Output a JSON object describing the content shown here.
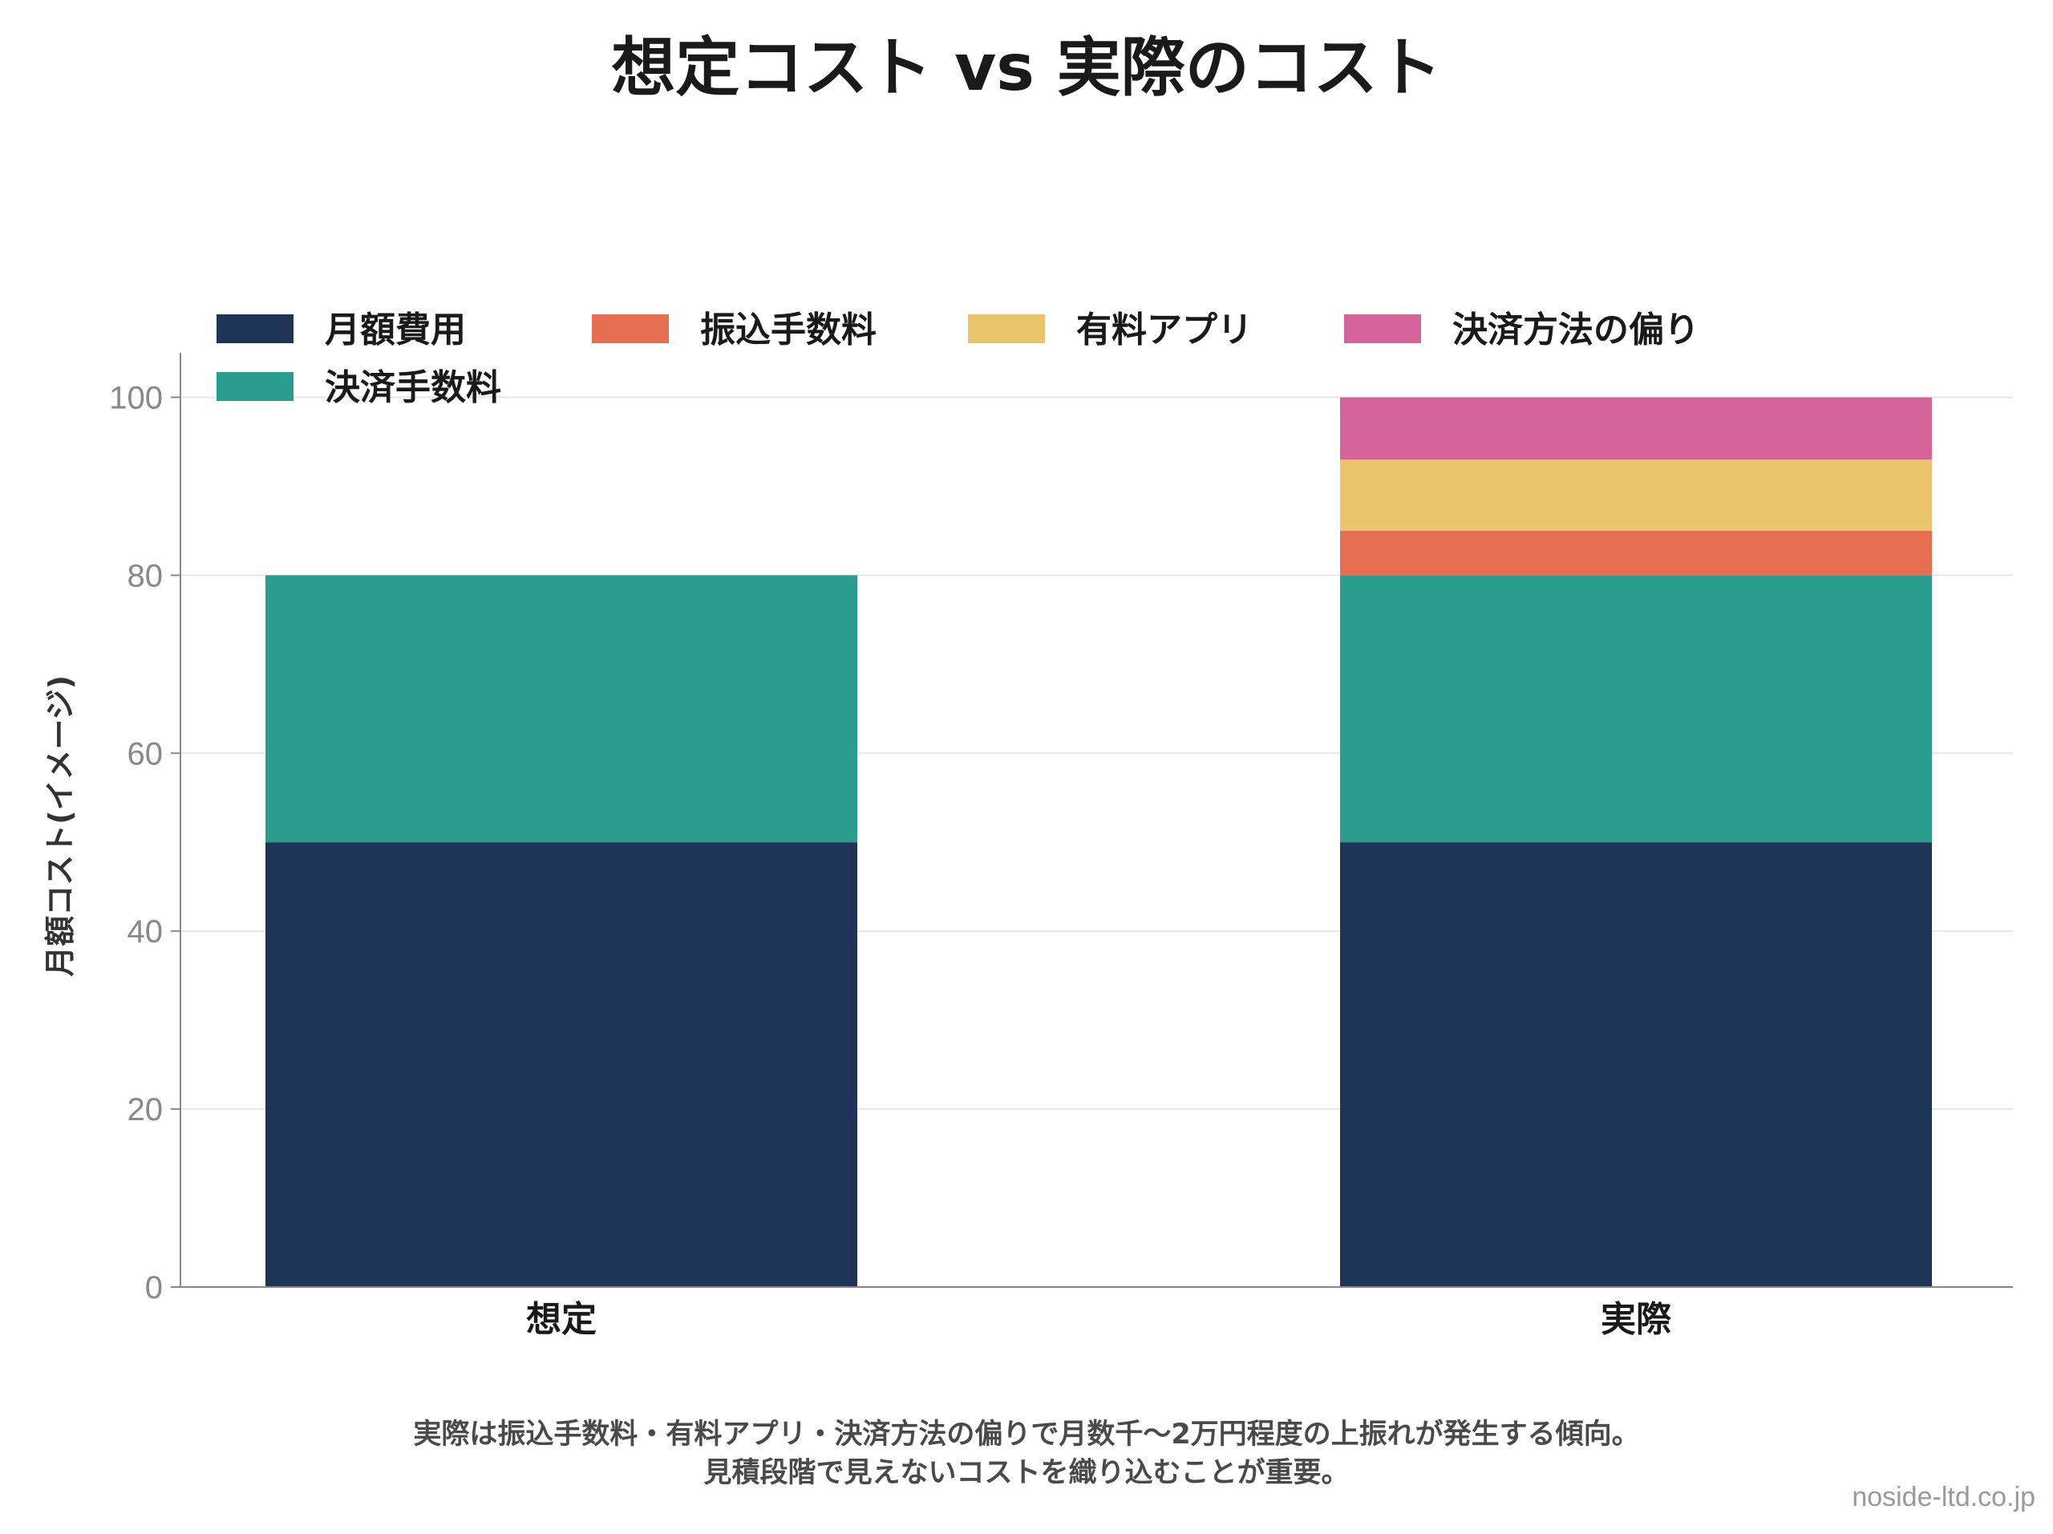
{
  "chart_data": {
    "type": "bar",
    "stacked": true,
    "title": "想定コスト vs 実際のコスト",
    "ylabel": "月額コスト(イメージ)",
    "xlabel": "",
    "categories": [
      "想定",
      "実際"
    ],
    "ylim": [
      0,
      105
    ],
    "yticks": [
      0,
      20,
      40,
      60,
      80,
      100
    ],
    "grid": true,
    "legend_position": "top-left",
    "series": [
      {
        "name": "月額費用",
        "color": "#1f3558",
        "values": [
          50,
          50
        ]
      },
      {
        "name": "決済手数料",
        "color": "#2a9d8f",
        "values": [
          30,
          30
        ]
      },
      {
        "name": "振込手数料",
        "color": "#e76f51",
        "values": [
          0,
          5
        ]
      },
      {
        "name": "有料アプリ",
        "color": "#e9c46a",
        "values": [
          0,
          8
        ]
      },
      {
        "name": "決済方法の偏り",
        "color": "#d5649a",
        "values": [
          0,
          7
        ]
      }
    ]
  },
  "note_lines": [
    "実際は振込手数料・有料アプリ・決済方法の偏りで月数千〜2万円程度の上振れが発生する傾向。",
    "見積段階で見えないコストを織り込むことが重要。"
  ],
  "credit": "noside-ltd.co.jp"
}
